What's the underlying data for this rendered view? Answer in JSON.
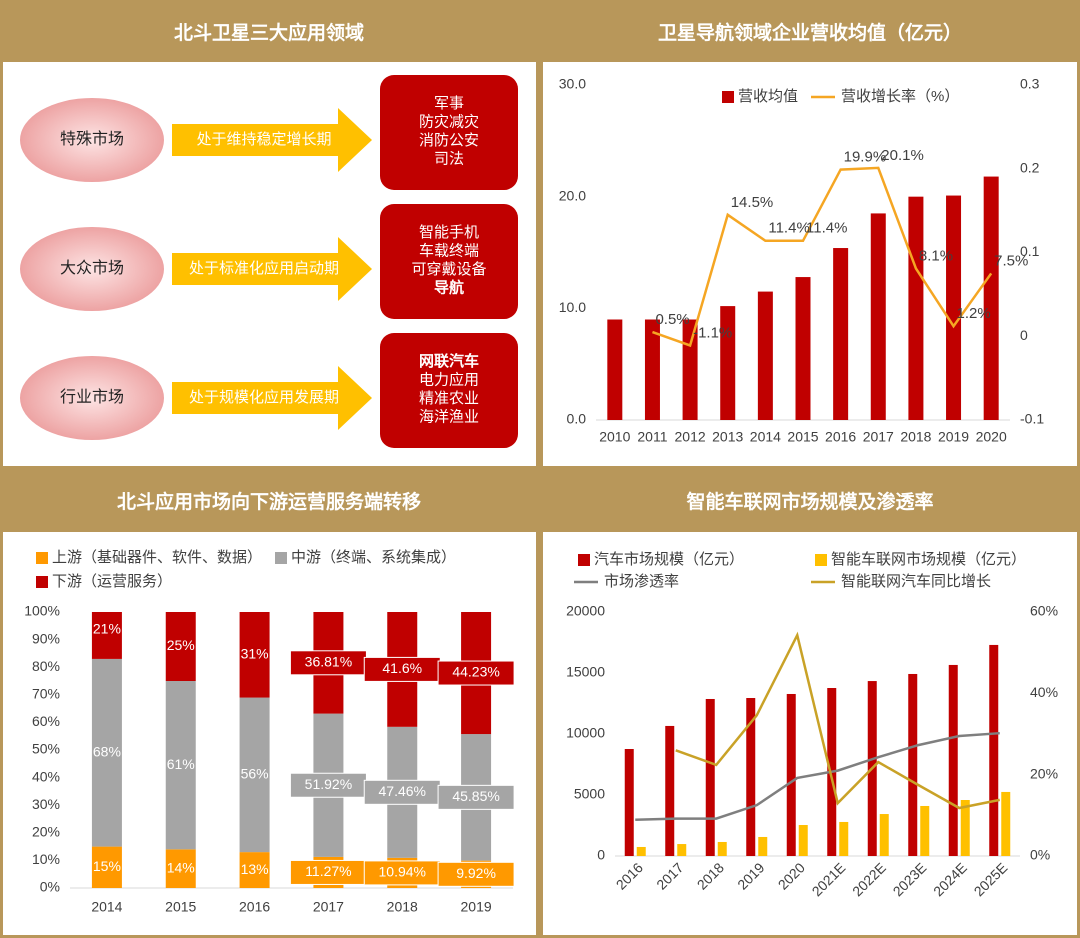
{
  "diagram": {
    "title": "北斗卫星三大应用领域",
    "rows": [
      {
        "market": "特殊市场",
        "status": "处于维持稳定增长期",
        "items": [
          {
            "text": "军事"
          },
          {
            "text": "防灾减灾"
          },
          {
            "text": "消防公安"
          },
          {
            "text": "司法"
          }
        ]
      },
      {
        "market": "大众市场",
        "status": "处于标准化应用启动期",
        "items": [
          {
            "text": "智能手机"
          },
          {
            "text": "车载终端"
          },
          {
            "text": "可穿戴设备"
          },
          {
            "text": "导航",
            "bold": true
          }
        ]
      },
      {
        "market": "行业市场",
        "status": "处于规模化应用发展期",
        "items": [
          {
            "text": "网联汽车",
            "bold": true
          },
          {
            "text": "电力应用"
          },
          {
            "text": "精准农业"
          },
          {
            "text": "海洋渔业"
          }
        ]
      }
    ]
  },
  "chart_data": [
    {
      "type": "combo",
      "title": "卫星导航领域企业营收均值（亿元）",
      "categories": [
        "2010",
        "2011",
        "2012",
        "2013",
        "2014",
        "2015",
        "2016",
        "2017",
        "2018",
        "2019",
        "2020"
      ],
      "series": [
        {
          "name": "营收均值",
          "type": "bar",
          "color": "#c00000",
          "values": [
            9.0,
            9.0,
            9.0,
            10.2,
            11.5,
            12.8,
            15.4,
            18.5,
            20.0,
            20.1,
            21.8
          ]
        },
        {
          "name": "营收增长率（%）",
          "type": "line",
          "axis": "y2",
          "color": "#f5a623",
          "values": [
            null,
            0.005,
            -0.011,
            0.145,
            0.114,
            0.114,
            0.199,
            0.201,
            0.081,
            0.012,
            0.075
          ],
          "value_labels": [
            null,
            "0.5%",
            "-1.1%",
            "14.5%",
            "11.4%",
            "11.4%",
            "19.9%",
            "20.1%",
            "8.1%",
            "1.2%",
            "7.5%"
          ]
        }
      ],
      "ylim": [
        0,
        30
      ],
      "yticks": [
        {
          "value": 0,
          "label": "0.0"
        },
        {
          "value": 10,
          "label": "10.0"
        },
        {
          "value": 20,
          "label": "20.0"
        },
        {
          "value": 30,
          "label": "30.0"
        }
      ],
      "y2lim": [
        -0.1,
        0.3
      ],
      "y2ticks": [
        -0.1,
        0,
        0.1,
        0.2,
        0.3
      ]
    },
    {
      "type": "stacked_bar",
      "title": "北斗应用市场向下游运营服务端转移",
      "categories": [
        "2014",
        "2015",
        "2016",
        "2017",
        "2018",
        "2019"
      ],
      "series": [
        {
          "name": "上游（基础器件、软件、数据）",
          "color": "#ff9900",
          "values": [
            15,
            14,
            13,
            11.27,
            10.94,
            9.92
          ],
          "value_labels": [
            "15%",
            "14%",
            "13%",
            "11.27%",
            "10.94%",
            "9.92%"
          ]
        },
        {
          "name": "中游（终端、系统集成）",
          "color": "#a5a5a5",
          "values": [
            68,
            61,
            56,
            51.92,
            47.46,
            45.85
          ],
          "value_labels": [
            "68%",
            "61%",
            "56%",
            "51.92%",
            "47.46%",
            "45.85%"
          ]
        },
        {
          "name": "下游（运营服务）",
          "color": "#c00000",
          "values": [
            21,
            25,
            31,
            36.81,
            41.6,
            44.23
          ],
          "value_labels": [
            "21%",
            "25%",
            "31%",
            "36.81%",
            "41.6%",
            "44.23%"
          ]
        }
      ],
      "ylim": [
        0,
        100
      ],
      "yticks": [
        {
          "value": 0,
          "label": "0%"
        },
        {
          "value": 10,
          "label": "10%"
        },
        {
          "value": 20,
          "label": "20%"
        },
        {
          "value": 30,
          "label": "30%"
        },
        {
          "value": 40,
          "label": "40%"
        },
        {
          "value": 50,
          "label": "50%"
        },
        {
          "value": 60,
          "label": "60%"
        },
        {
          "value": 70,
          "label": "70%"
        },
        {
          "value": 80,
          "label": "80%"
        },
        {
          "value": 90,
          "label": "90%"
        },
        {
          "value": 100,
          "label": "100%"
        }
      ]
    },
    {
      "type": "combo",
      "title": "智能车联网市场规模及渗透率",
      "categories": [
        "2016",
        "2017",
        "2018",
        "2019",
        "2020",
        "2021E",
        "2022E",
        "2023E",
        "2024E",
        "2025E"
      ],
      "series": [
        {
          "name": "汽车市场规模（亿元）",
          "type": "bar",
          "color": "#c00000",
          "values": [
            8770,
            10660,
            12870,
            12950,
            13280,
            13770,
            14340,
            14920,
            15660,
            17300
          ]
        },
        {
          "name": "智能车联网市场规模（亿元）",
          "type": "bar",
          "color": "#ffc000",
          "values": [
            740,
            980,
            1150,
            1560,
            2540,
            2790,
            3440,
            4100,
            4590,
            5250
          ]
        },
        {
          "name": "市场渗透率",
          "type": "line",
          "axis": "y2",
          "color": "#7f7f7f",
          "values": [
            8.9,
            9.2,
            9.2,
            12.5,
            19.2,
            21,
            24.3,
            27.3,
            29.5,
            30.2
          ]
        },
        {
          "name": "智能联网汽车同比增长",
          "type": "line",
          "axis": "y2",
          "color": "#c9a227",
          "values": [
            null,
            26,
            22.4,
            34.6,
            54.3,
            13,
            23.1,
            17.4,
            11.8,
            13.8
          ]
        }
      ],
      "ylim": [
        0,
        20000
      ],
      "yticks": [
        0,
        5000,
        10000,
        15000,
        20000
      ],
      "y2lim": [
        0,
        60
      ],
      "y2ticks": [
        {
          "value": 0,
          "label": "0%"
        },
        {
          "value": 20,
          "label": "20%"
        },
        {
          "value": 40,
          "label": "40%"
        },
        {
          "value": 60,
          "label": "60%"
        }
      ]
    }
  ]
}
